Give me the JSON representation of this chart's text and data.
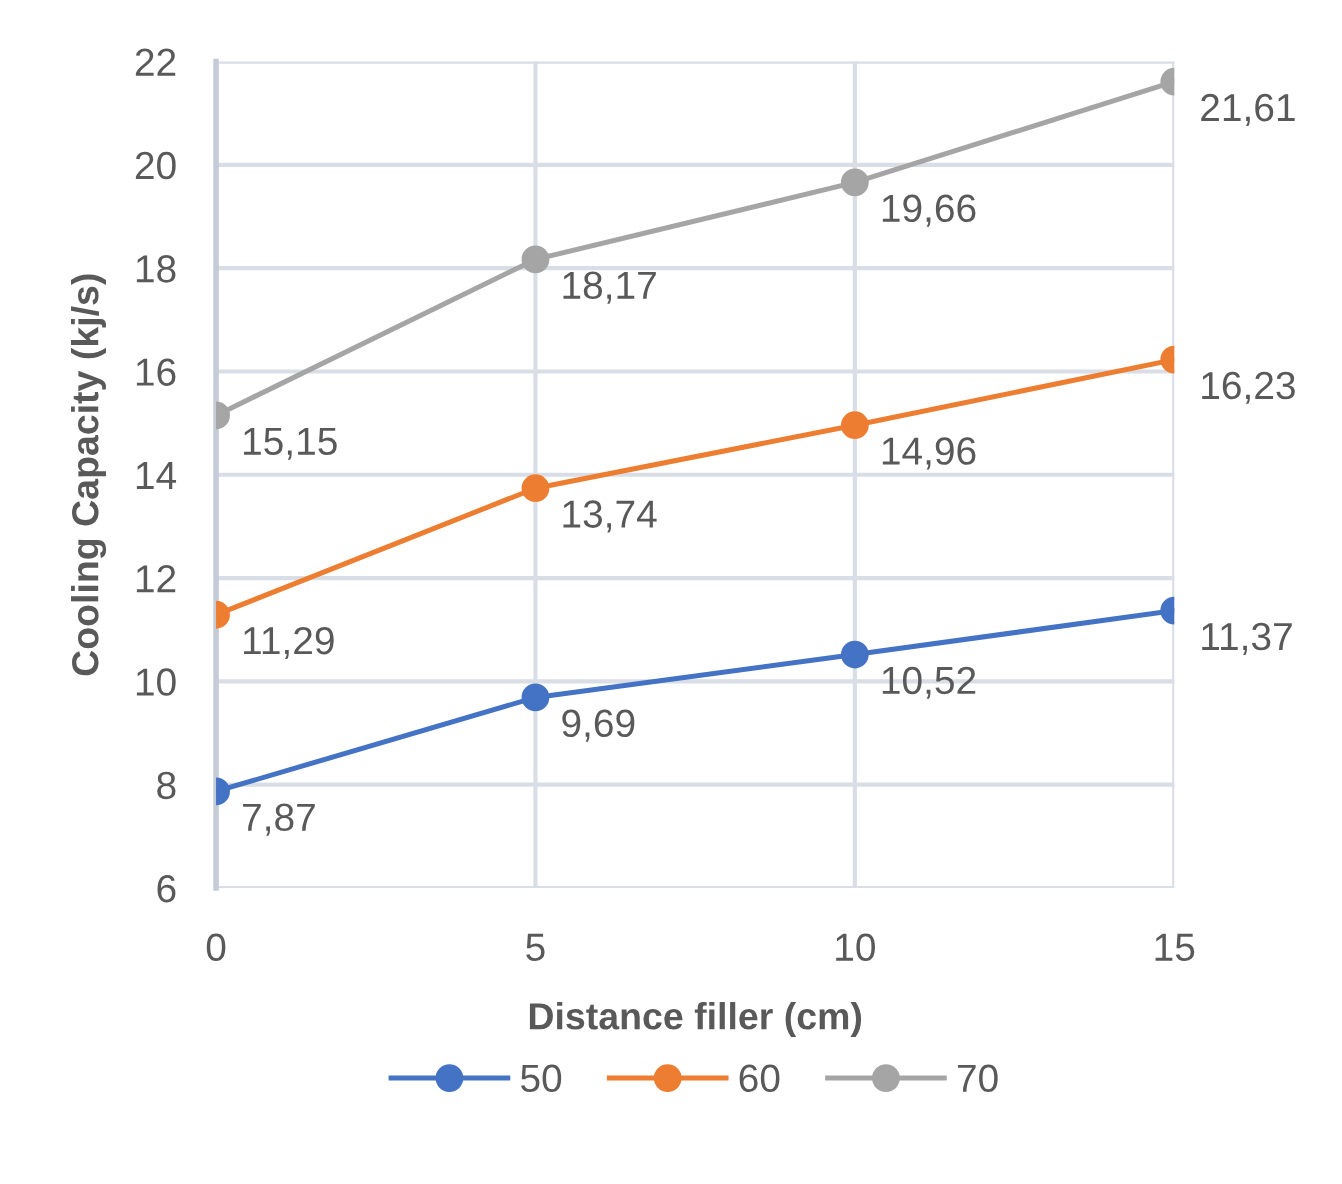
{
  "chart_data": {
    "type": "line",
    "xlabel": "Distance filler (cm)",
    "ylabel": "Cooling Capacity (kj/s)",
    "x": [
      0,
      5,
      10,
      15
    ],
    "xlim": [
      0,
      15
    ],
    "xticks": [
      0,
      5,
      10,
      15
    ],
    "ylim": [
      6,
      22
    ],
    "yticks": [
      6,
      8,
      10,
      12,
      14,
      16,
      18,
      20,
      22
    ],
    "grid": true,
    "legend": "bottom",
    "marker": "circle",
    "line_style": "solid",
    "series": [
      {
        "name": "50",
        "color": "#4472c4",
        "values": [
          7.87,
          9.69,
          10.52,
          11.37
        ],
        "value_labels": [
          "7,87",
          "9,69",
          "10,52",
          "11,37"
        ]
      },
      {
        "name": "60",
        "color": "#ed7d31",
        "values": [
          11.29,
          13.74,
          14.96,
          16.23
        ],
        "value_labels": [
          "11,29",
          "13,74",
          "14,96",
          "16,23"
        ]
      },
      {
        "name": "70",
        "color": "#a5a5a5",
        "values": [
          15.15,
          18.17,
          19.66,
          21.61
        ],
        "value_labels": [
          "15,15",
          "18,17",
          "19,66",
          "21,61"
        ]
      }
    ]
  }
}
